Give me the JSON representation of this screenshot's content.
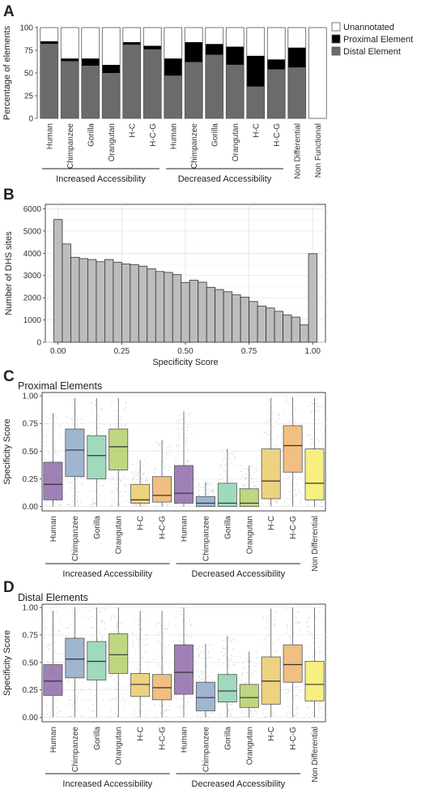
{
  "chart_data": [
    {
      "panel": "A",
      "type": "bar",
      "stacked": true,
      "ylabel": "Percentage of elements",
      "ylim": [
        0,
        100
      ],
      "yticks": [
        0,
        25,
        50,
        75,
        100
      ],
      "categories": [
        "Human",
        "Chimpanzee",
        "Gorilla",
        "Orangutan",
        "H-C",
        "H-C-G",
        "Human",
        "Chimpanzee",
        "Gorilla",
        "Orangutan",
        "H-C",
        "H-C-G",
        "Non Differential",
        "Non Functional"
      ],
      "groups": [
        {
          "label": "Increased Accessibility",
          "start": 0,
          "end": 5
        },
        {
          "label": "Decreased Accessibility",
          "start": 6,
          "end": 11
        }
      ],
      "series": [
        {
          "name": "Distal Element",
          "color": "#6b6b6b",
          "values": [
            82,
            63,
            58,
            50,
            81,
            76,
            47,
            62,
            70,
            59,
            35,
            54,
            56,
            0
          ]
        },
        {
          "name": "Proximal Element",
          "color": "#000000",
          "values": [
            3,
            3,
            8,
            9,
            3,
            4,
            19,
            22,
            12,
            20,
            34,
            11,
            22,
            0
          ]
        },
        {
          "name": "Unannotated",
          "color": "#ffffff",
          "values": [
            15,
            34,
            34,
            41,
            16,
            20,
            34,
            16,
            18,
            21,
            31,
            35,
            22,
            100
          ]
        }
      ],
      "legend": {
        "position": "right",
        "entries": [
          "Unannotated",
          "Proximal Element",
          "Distal Element"
        ]
      }
    },
    {
      "panel": "B",
      "type": "bar",
      "histogram": true,
      "xlabel": "Specificity Score",
      "ylabel": "Number of DHS sites",
      "xlim": [
        -0.05,
        1.05
      ],
      "ylim": [
        0,
        6200
      ],
      "xticks": [
        0.0,
        0.25,
        0.5,
        0.75,
        1.0
      ],
      "xtick_labels": [
        "0.00",
        "0.25",
        "0.50",
        "0.75",
        "1.00"
      ],
      "yticks": [
        0,
        1000,
        2000,
        3000,
        4000,
        5000,
        6000
      ],
      "bin_width": 0.0333,
      "x": [
        0.0,
        0.0333,
        0.0667,
        0.1,
        0.1333,
        0.1667,
        0.2,
        0.2333,
        0.2667,
        0.3,
        0.3333,
        0.3667,
        0.4,
        0.4333,
        0.4667,
        0.5,
        0.5333,
        0.5667,
        0.6,
        0.6333,
        0.6667,
        0.7,
        0.7333,
        0.7667,
        0.8,
        0.8333,
        0.8667,
        0.9,
        0.9333,
        0.9667
      ],
      "values": [
        5520,
        4420,
        3820,
        3760,
        3720,
        3620,
        3720,
        3600,
        3520,
        3490,
        3420,
        3300,
        3180,
        3140,
        3040,
        2690,
        2790,
        2700,
        2470,
        2370,
        2270,
        2130,
        2030,
        1830,
        1630,
        1540,
        1390,
        1230,
        1130,
        780
      ],
      "extra_bin": {
        "x": 1.0,
        "value": 3980
      },
      "fill": "#bdbdbd",
      "grid": true
    },
    {
      "panel": "C",
      "type": "box",
      "title": "Proximal Elements",
      "ylabel": "Specificity Score",
      "ylim": [
        -0.04,
        1.03
      ],
      "yticks": [
        0.0,
        0.25,
        0.5,
        0.75,
        1.0
      ],
      "ytick_labels": [
        "0.00",
        "0.25",
        "0.50",
        "0.75",
        "1.00"
      ],
      "categories": [
        "Human",
        "Chimpanzee",
        "Gorilla",
        "Orangutan",
        "H-C",
        "H-C-G",
        "Human",
        "Chimpanzee",
        "Gorilla",
        "Orangutan",
        "H-C",
        "H-C-G",
        "Non Differential"
      ],
      "groups": [
        {
          "label": "Increased Accessibility",
          "start": 0,
          "end": 5
        },
        {
          "label": "Decreased Accessibility",
          "start": 6,
          "end": 11
        }
      ],
      "colors": [
        "#8e6bab",
        "#8fa8c8",
        "#8ed3b0",
        "#b5cf6b",
        "#eacb6b",
        "#eeb46b",
        "#8e6bab",
        "#8fa8c8",
        "#8ed3b0",
        "#b5cf6b",
        "#eacb6b",
        "#eeb46b",
        "#f5ec6b"
      ],
      "boxes": [
        {
          "min": 0.0,
          "q1": 0.06,
          "median": 0.2,
          "q3": 0.4,
          "max": 0.84
        },
        {
          "min": 0.0,
          "q1": 0.27,
          "median": 0.51,
          "q3": 0.7,
          "max": 0.98
        },
        {
          "min": 0.0,
          "q1": 0.25,
          "median": 0.46,
          "q3": 0.64,
          "max": 0.98
        },
        {
          "min": 0.0,
          "q1": 0.33,
          "median": 0.54,
          "q3": 0.7,
          "max": 0.98
        },
        {
          "min": 0.0,
          "q1": 0.03,
          "median": 0.06,
          "q3": 0.2,
          "max": 0.42
        },
        {
          "min": 0.0,
          "q1": 0.04,
          "median": 0.1,
          "q3": 0.27,
          "max": 0.6
        },
        {
          "min": 0.0,
          "q1": 0.03,
          "median": 0.12,
          "q3": 0.37,
          "max": 0.86
        },
        {
          "min": 0.0,
          "q1": 0.0,
          "median": 0.03,
          "q3": 0.09,
          "max": 0.22
        },
        {
          "min": 0.0,
          "q1": 0.0,
          "median": 0.03,
          "q3": 0.21,
          "max": 0.52
        },
        {
          "min": 0.0,
          "q1": 0.0,
          "median": 0.03,
          "q3": 0.16,
          "max": 0.37
        },
        {
          "min": 0.0,
          "q1": 0.07,
          "median": 0.23,
          "q3": 0.52,
          "max": 0.98
        },
        {
          "min": 0.0,
          "q1": 0.31,
          "median": 0.55,
          "q3": 0.73,
          "max": 0.99
        },
        {
          "min": 0.0,
          "q1": 0.06,
          "median": 0.21,
          "q3": 0.52,
          "max": 0.98
        }
      ]
    },
    {
      "panel": "D",
      "type": "box",
      "title": "Distal Elements",
      "ylabel": "Specificity Score",
      "ylim": [
        -0.04,
        1.03
      ],
      "yticks": [
        0.0,
        0.25,
        0.5,
        0.75,
        1.0
      ],
      "ytick_labels": [
        "0.00",
        "0.25",
        "0.50",
        "0.75",
        "1.00"
      ],
      "categories": [
        "Human",
        "Chimpanzee",
        "Gorilla",
        "Orangutan",
        "H-C",
        "H-C-G",
        "Human",
        "Chimpanzee",
        "Gorilla",
        "Orangutan",
        "H-C",
        "H-C-G",
        "Non Differential"
      ],
      "groups": [
        {
          "label": "Increased Accessibility",
          "start": 0,
          "end": 5
        },
        {
          "label": "Decreased Accessibility",
          "start": 6,
          "end": 11
        }
      ],
      "colors": [
        "#8e6bab",
        "#8fa8c8",
        "#8ed3b0",
        "#b5cf6b",
        "#eacb6b",
        "#eeb46b",
        "#8e6bab",
        "#8fa8c8",
        "#8ed3b0",
        "#b5cf6b",
        "#eacb6b",
        "#eeb46b",
        "#f5ec6b"
      ],
      "boxes": [
        {
          "min": 0.0,
          "q1": 0.2,
          "median": 0.33,
          "q3": 0.48,
          "max": 0.97
        },
        {
          "min": 0.0,
          "q1": 0.36,
          "median": 0.53,
          "q3": 0.72,
          "max": 1.0
        },
        {
          "min": 0.0,
          "q1": 0.34,
          "median": 0.51,
          "q3": 0.69,
          "max": 1.0
        },
        {
          "min": 0.0,
          "q1": 0.4,
          "median": 0.57,
          "q3": 0.76,
          "max": 1.0
        },
        {
          "min": 0.0,
          "q1": 0.19,
          "median": 0.3,
          "q3": 0.4,
          "max": 0.97
        },
        {
          "min": 0.0,
          "q1": 0.16,
          "median": 0.27,
          "q3": 0.39,
          "max": 0.97
        },
        {
          "min": 0.0,
          "q1": 0.21,
          "median": 0.41,
          "q3": 0.66,
          "max": 1.0
        },
        {
          "min": 0.0,
          "q1": 0.06,
          "median": 0.18,
          "q3": 0.32,
          "max": 0.67
        },
        {
          "min": 0.0,
          "q1": 0.14,
          "median": 0.24,
          "q3": 0.39,
          "max": 0.74
        },
        {
          "min": 0.0,
          "q1": 0.09,
          "median": 0.18,
          "q3": 0.3,
          "max": 0.6
        },
        {
          "min": 0.0,
          "q1": 0.12,
          "median": 0.33,
          "q3": 0.55,
          "max": 0.99
        },
        {
          "min": 0.0,
          "q1": 0.32,
          "median": 0.48,
          "q3": 0.66,
          "max": 1.0
        },
        {
          "min": 0.0,
          "q1": 0.15,
          "median": 0.3,
          "q3": 0.51,
          "max": 1.0
        }
      ]
    }
  ]
}
